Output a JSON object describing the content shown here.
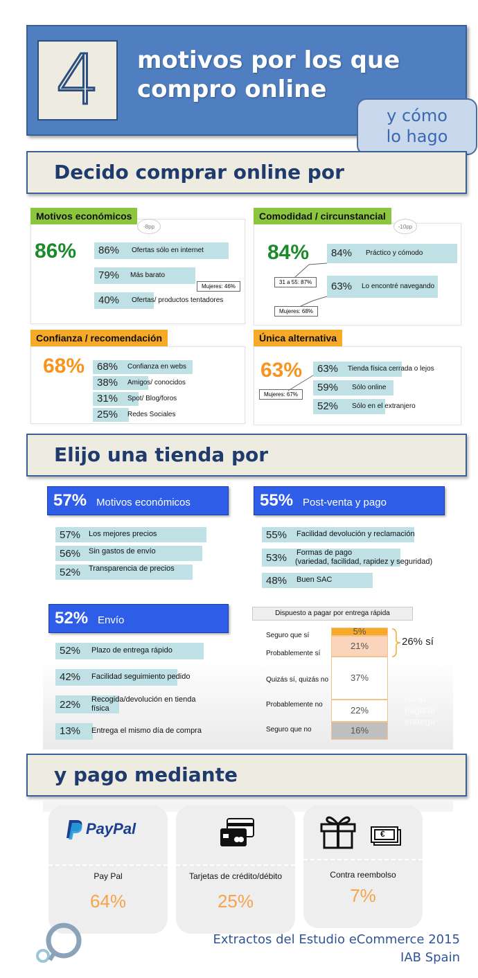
{
  "header": {
    "number": "4",
    "title_line1": "motivos por los que",
    "title_line2": "compro online",
    "bubble_line1": "y cómo",
    "bubble_line2": "lo hago"
  },
  "section1": {
    "title": "Decido comprar online por",
    "economicos": {
      "tag": "Motivos económicos",
      "note": "-8pp",
      "big": "86%",
      "items": [
        {
          "value": "86%",
          "label": "Ofertas sólo en internet"
        },
        {
          "value": "79%",
          "label": "Más barato"
        },
        {
          "value": "40%",
          "label": "Ofertas/ productos tentadores"
        }
      ],
      "callout": "Mujeres: 46%"
    },
    "comodidad": {
      "tag": "Comodidad / circunstancial",
      "note": "-10pp",
      "big": "84%",
      "items": [
        {
          "value": "84%",
          "label": "Práctico y  cómodo"
        },
        {
          "value": "63%",
          "label": "Lo encontré navegando"
        }
      ],
      "callout1": "31 a 55: 87%",
      "callout2": "Mujeres: 68%"
    },
    "confianza": {
      "tag": "Confianza / recomendación",
      "big": "68%",
      "items": [
        {
          "value": "68%",
          "label": "Confianza en webs"
        },
        {
          "value": "38%",
          "label": "Amigos/ conocidos"
        },
        {
          "value": "31%",
          "label": "Spot/ Blog/foros"
        },
        {
          "value": "25%",
          "label": "Redes Sociales"
        }
      ]
    },
    "unica": {
      "tag": "Única alternativa",
      "big": "63%",
      "items": [
        {
          "value": "63%",
          "label": "Tienda física cerrada o lejos"
        },
        {
          "value": "59%",
          "label": "Sólo online"
        },
        {
          "value": "52%",
          "label": "Sólo en el extranjero"
        }
      ],
      "callout": "Mujeres: 67%"
    }
  },
  "section2": {
    "title": "Elijo una tienda por",
    "economicos": {
      "pct": "57%",
      "label": "Motivos económicos",
      "items": [
        {
          "value": "57%",
          "label": "Los mejores precios"
        },
        {
          "value": "56%",
          "label": "Sin gastos de envío"
        },
        {
          "value": "52%",
          "label": "Transparencia de precios"
        }
      ]
    },
    "postventa": {
      "pct": "55%",
      "label": "Post-venta y pago",
      "items": [
        {
          "value": "55%",
          "label": "Facilidad devolución y reclamación"
        },
        {
          "value": "53%",
          "label": "Formas de pago",
          "label2": " (variedad, facilidad, rapidez y seguridad)"
        },
        {
          "value": "48%",
          "label": "Buen SAC"
        }
      ]
    },
    "envio": {
      "pct": "52%",
      "label": "Envío",
      "items": [
        {
          "value": "52%",
          "label": "Plazo de entrega rápido"
        },
        {
          "value": "42%",
          "label": "Facilidad seguimiento  pedido"
        },
        {
          "value": "22%",
          "label": "Recogida/devolución en tienda",
          "label2": "física"
        },
        {
          "value": "13%",
          "label": "Entrega el mismo día de compra"
        }
      ]
    },
    "dispuesto": {
      "title": "Dispuesto a pagar por entrega rápida",
      "rows": [
        {
          "label": "Seguro que sí",
          "value": "5%"
        },
        {
          "label": "Probablemente sí",
          "value": "21%"
        },
        {
          "label": "Quizás sí, quizás no",
          "value": "37%"
        },
        {
          "label": "Probablemente no",
          "value": "22%"
        },
        {
          "label": "Seguro que no",
          "value": "16%"
        }
      ],
      "summary": "26% sí",
      "ghost_line1": "No la",
      "ghost_line2": "pagaría",
      "ghost_line3": "entrega"
    }
  },
  "section3": {
    "title": "y pago mediante",
    "cards": [
      {
        "brand": "PayPal",
        "name": "Pay Pal",
        "pct": "64%"
      },
      {
        "name": "Tarjetas de crédito/débito",
        "pct": "25%"
      },
      {
        "name": "Contra reembolso",
        "pct": "7%",
        "euro": "€"
      }
    ]
  },
  "footer": {
    "line1": "Extractos del Estudio eCommerce 2015",
    "line2": "IAB Spain"
  },
  "colors": {
    "header_blue": "#4f7fc0",
    "section_bg": "#eeece1",
    "navy_text": "#1f3a6d",
    "green_tag": "#8cc63f",
    "orange_tag": "#f7a928",
    "bar_teal": "#bfe0e4",
    "blue_head": "#2e5ee8",
    "pct_orange": "#f7a34b"
  }
}
